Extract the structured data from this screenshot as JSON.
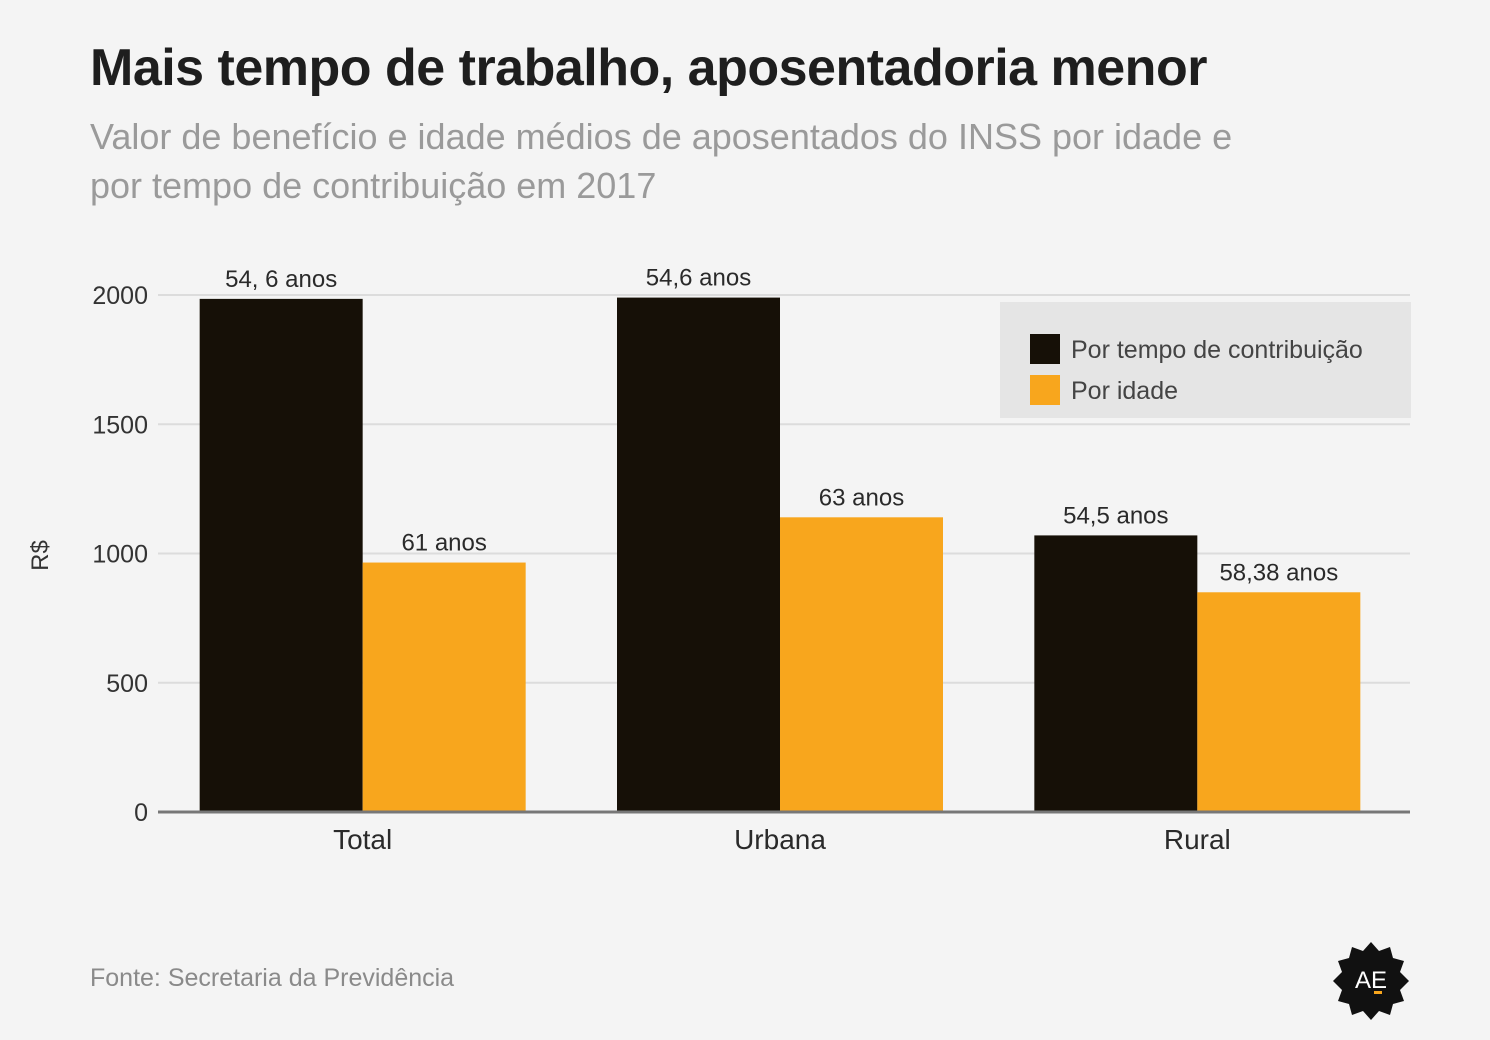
{
  "title": "Mais tempo de trabalho, aposentadoria menor",
  "subtitle": "Valor de benefício e idade médios de aposentados do INSS por idade e por tempo de contribuição em 2017",
  "source": "Fonte: Secretaria da Previdência",
  "logo_text": "AE",
  "chart_data": {
    "type": "bar",
    "categories": [
      "Total",
      "Urbana",
      "Rural"
    ],
    "series": [
      {
        "name": "Por tempo de contribuição",
        "color": "#161007",
        "values": [
          1985,
          1990,
          1070
        ],
        "labels": [
          "54, 6 anos",
          "54,6 anos",
          "54,5 anos"
        ]
      },
      {
        "name": "Por idade",
        "color": "#f8a61d",
        "values": [
          965,
          1140,
          850
        ],
        "labels": [
          "61 anos",
          "63 anos",
          "58,38 anos"
        ]
      }
    ],
    "ylabel": "R$",
    "ylim": [
      0,
      2000
    ],
    "yticks": [
      0,
      500,
      1000,
      1500,
      2000
    ],
    "grid": true,
    "legend": "top-right"
  }
}
